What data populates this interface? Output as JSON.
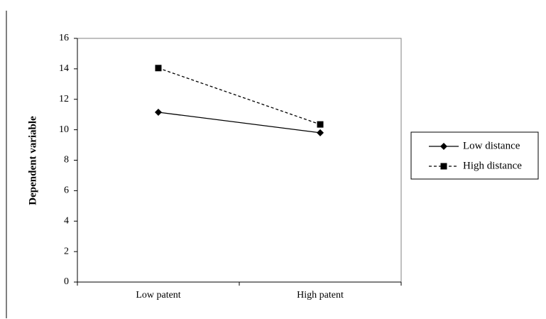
{
  "chart_data": {
    "type": "line",
    "categories": [
      "Low patent",
      "High patent"
    ],
    "ylabel": "Dependent variable",
    "xlabel": "",
    "ylim": [
      0,
      16
    ],
    "yticks": [
      0,
      2,
      4,
      6,
      8,
      10,
      12,
      14,
      16
    ],
    "grid": false,
    "legend_position": "right",
    "series": [
      {
        "name": "Low distance",
        "values": [
          11.15,
          9.8
        ],
        "marker": "diamond",
        "line_style": "solid",
        "color": "#000000"
      },
      {
        "name": "High distance",
        "values": [
          14.05,
          10.35
        ],
        "marker": "square",
        "line_style": "dashed",
        "color": "#000000"
      }
    ]
  }
}
